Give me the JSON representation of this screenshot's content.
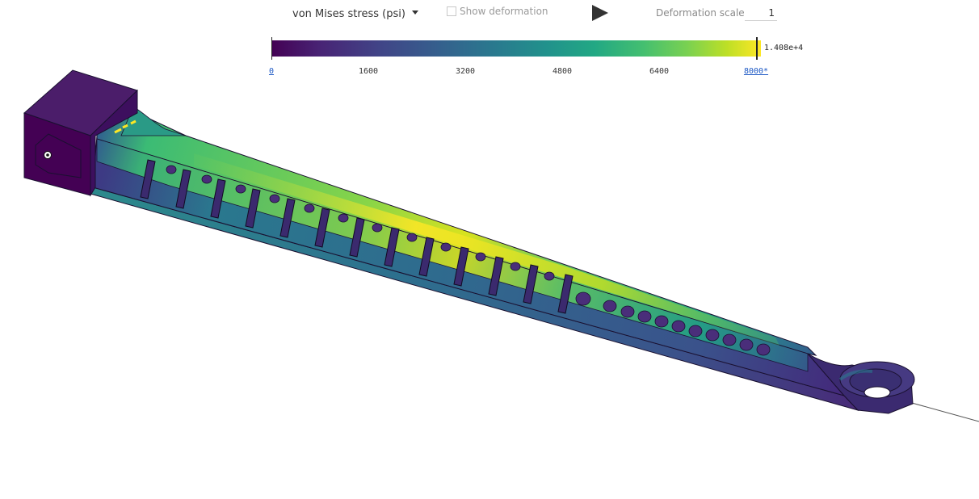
{
  "toolbar": {
    "result_type": "von Mises stress (psi)",
    "show_deformation_label": "Show deformation",
    "deformation_scale_label": "Deformation scale",
    "deformation_scale_value": "1"
  },
  "legend": {
    "ticks": [
      "0",
      "1600",
      "3200",
      "4800",
      "6400",
      "8000*"
    ],
    "max_value": "1.408e+4"
  },
  "colors": {
    "colormap": [
      "#440154",
      "#414487",
      "#2a788e",
      "#22a884",
      "#7ad151",
      "#fde725"
    ],
    "tick_link": "#1b57c4"
  }
}
